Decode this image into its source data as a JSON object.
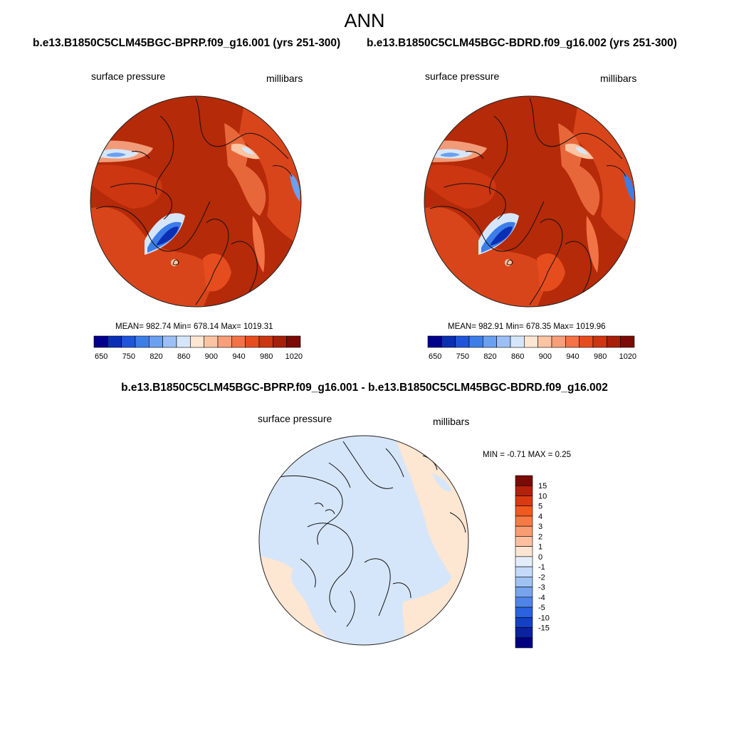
{
  "season_title": "ANN",
  "panels": [
    {
      "header": "b.e13.B1850C5CLM45BGC-BPRP.f09_g16.001 (yrs 251-300)",
      "left_label": "surface pressure",
      "right_label": "millibars",
      "stats": "MEAN= 982.74  Min= 678.14  Max= 1019.31"
    },
    {
      "header": "b.e13.B1850C5CLM45BGC-BDRD.f09_g16.002 (yrs 251-300)",
      "left_label": "surface pressure",
      "right_label": "millibars",
      "stats": "MEAN= 982.91  Min= 678.35  Max= 1019.96"
    }
  ],
  "diff_panel": {
    "header": "b.e13.B1850C5CLM45BGC-BPRP.f09_g16.001 - b.e13.B1850C5CLM45BGC-BDRD.f09_g16.002",
    "left_label": "surface pressure",
    "right_label": "millibars",
    "stats": "MIN =  -0.71 MAX =   0.25"
  },
  "colorbar_abs": {
    "colors": [
      "#00008b",
      "#0a2fb5",
      "#1f55d8",
      "#3d7de8",
      "#6b9ff0",
      "#9cc0f5",
      "#d6e6fa",
      "#fde6d2",
      "#fbc4a3",
      "#f79f78",
      "#f27345",
      "#e64d1e",
      "#cc3610",
      "#a81e08",
      "#7a0b06"
    ],
    "tick_labels": [
      "650",
      "750",
      "820",
      "860",
      "900",
      "940",
      "980",
      "1020"
    ]
  },
  "colorbar_diff": {
    "colors": [
      "#7a0b06",
      "#b3200c",
      "#d93a12",
      "#f05a1f",
      "#f57a44",
      "#f99c73",
      "#fcc0a0",
      "#fbe6d3",
      "#e4eefb",
      "#c4daf8",
      "#a0c2f3",
      "#78a4ee",
      "#4f84e8",
      "#2a62df",
      "#1440c4",
      "#0a22a0",
      "#000080"
    ],
    "tick_labels": [
      "15",
      "10",
      "5",
      "4",
      "3",
      "2",
      "1",
      "0",
      "-1",
      "-2",
      "-3",
      "-4",
      "-5",
      "-10",
      "-15"
    ]
  },
  "colors": {
    "field_high": "#b52a08",
    "field_mid": "#d9451a",
    "diff_negative": "#d6e6fa",
    "diff_positive": "#fde6d2",
    "coastline": "#111111"
  }
}
